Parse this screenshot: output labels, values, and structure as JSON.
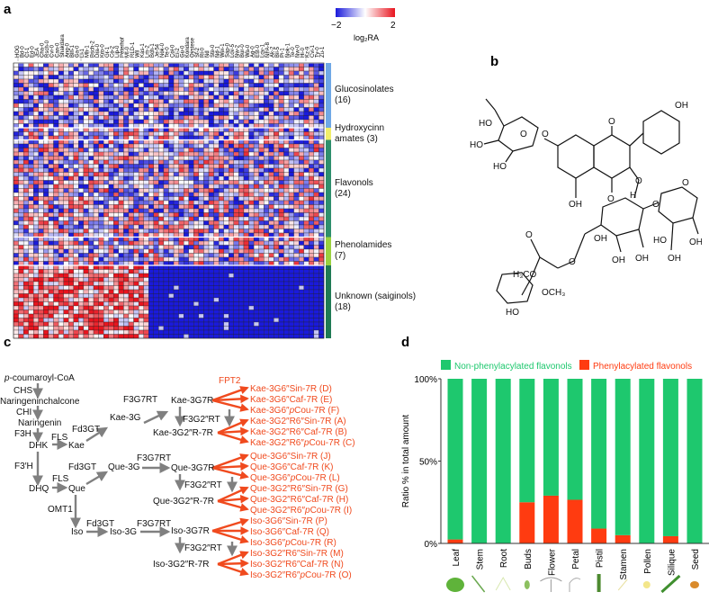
{
  "panels": {
    "a": "a",
    "b": "b",
    "c": "c",
    "d": "d"
  },
  "chart_data": [
    {
      "type": "heatmap",
      "panel": "a",
      "colorbar": {
        "min": -2,
        "max": 2,
        "min_label": "−2",
        "max_label": "2",
        "label": "log₂RA",
        "colors": [
          "#1a1adb",
          "#ffffff",
          "#e8141e"
        ]
      },
      "columns": [
        "HOG",
        "Bd-0",
        "Ct-1",
        "Ed-0",
        "JEA",
        "Cha-0",
        "Rsch-0",
        "Cvi-0",
        "Can-0",
        "Shakdara",
        "Ang-0",
        "Blh-1",
        "Ga-0",
        "Ll-1",
        "Mh-1",
        "Bsch-2",
        "Dra-0",
        "Kro-0",
        "Gr-1",
        "Co-2",
        "Lip-0",
        "Peterhof",
        "Mt-0",
        "RLD-1",
        "Wil",
        "Kas-1",
        "Lm-2",
        "Bch-1",
        "Je-54",
        "Nok-0",
        "Te-0",
        "Col-0",
        "Ei-2",
        "Gu-0",
        "Kondara",
        "Oystese",
        "Sf-2",
        "Ri-0",
        "Nd",
        "Ste-0",
        "Nd-1",
        "Wei-1",
        "Sap-0",
        "Lov-5",
        "Nw-2",
        "Bur-0",
        "Wa-0",
        "Ag-0",
        "Est-0",
        "Lov-1",
        "NFA-8",
        "Ak-2",
        "Bil-5",
        "Pi-1",
        "Nok-1",
        "Te-0",
        "Nw-0",
        "Hi-0",
        "Kz-9",
        "Cvi-1",
        "Ty-0",
        "Zu-1"
      ],
      "groups": [
        {
          "name": "Glucosinolates",
          "count_label": "(16)",
          "rows": 16,
          "color": "#6fa8e6"
        },
        {
          "name": "Hydroxycinn amates",
          "label_lines": [
            "Hydroxycinn",
            "amates (3)"
          ],
          "rows": 3,
          "color": "#f1ee6a"
        },
        {
          "name": "Flavonols",
          "count_label": "(24)",
          "rows": 24,
          "color": "#2e8f6c"
        },
        {
          "name": "Phenolamides",
          "count_label": "(7)",
          "rows": 7,
          "color": "#9bd13f"
        },
        {
          "name": "Unknown (saiginols)",
          "count_label": "(18)",
          "rows": 18,
          "color": "#1f7a54"
        }
      ]
    },
    {
      "type": "bar",
      "stacked": true,
      "panel": "d",
      "categories": [
        "Leaf",
        "Stem",
        "Root",
        "Buds",
        "Flower",
        "Petal",
        "Pistil",
        "Stamen",
        "Pollen",
        "Silique",
        "Seed"
      ],
      "series": [
        {
          "name": "Non-phenylacylated flavonols",
          "color": "#1ec86e",
          "values": [
            97.6,
            100,
            100,
            75,
            71,
            73.5,
            91,
            95,
            100,
            95.6,
            100
          ]
        },
        {
          "name": "Phenylacylated flavonols",
          "color": "#ff3b10",
          "values": [
            2.4,
            0,
            0,
            25,
            29,
            26.5,
            9,
            5,
            0,
            4.4,
            0
          ]
        }
      ],
      "ylabel": "Ratio % in total amount",
      "yticks": [
        "0%",
        "50%",
        "100%"
      ],
      "ylim": [
        0,
        100
      ],
      "legend": "top",
      "grid": false
    }
  ],
  "structure": {
    "labels": [
      "OH",
      "HO",
      "HO",
      "HO",
      "O",
      "O",
      "O",
      "O",
      "OH",
      "O",
      "OH",
      "OH",
      "HO",
      "O",
      "H",
      "O",
      "O",
      "O",
      "OH",
      "OH",
      "OH",
      "H₃CO",
      "HO",
      "OCH₃"
    ]
  },
  "pathway": {
    "black": [
      {
        "id": "pcoum",
        "t": "p-coumaroyl-CoA"
      },
      {
        "id": "chs",
        "t": "CHS"
      },
      {
        "id": "nch",
        "t": "Naringeninchalcone"
      },
      {
        "id": "chi",
        "t": "CHI"
      },
      {
        "id": "nar",
        "t": "Naringenin"
      },
      {
        "id": "f3h",
        "t": "F3H"
      },
      {
        "id": "dhk",
        "t": "DHK"
      },
      {
        "id": "fls1",
        "t": "FLS"
      },
      {
        "id": "kae",
        "t": "Kae"
      },
      {
        "id": "fd1",
        "t": "Fd3GT"
      },
      {
        "id": "kae3g",
        "t": "Kae-3G"
      },
      {
        "id": "f7a",
        "t": "F3G7RT"
      },
      {
        "id": "kae7r",
        "t": "Kae-3G7R"
      },
      {
        "id": "f2a",
        "t": "F3G2″RT"
      },
      {
        "id": "kae27",
        "t": "Kae-3G2″R-7R"
      },
      {
        "id": "f3ph",
        "t": "F3′H"
      },
      {
        "id": "dhq",
        "t": "DHQ"
      },
      {
        "id": "fls2",
        "t": "FLS"
      },
      {
        "id": "que",
        "t": "Que"
      },
      {
        "id": "fd2",
        "t": "Fd3GT"
      },
      {
        "id": "que3g",
        "t": "Que-3G"
      },
      {
        "id": "f7b",
        "t": "F3G7RT"
      },
      {
        "id": "que7r",
        "t": "Que-3G7R"
      },
      {
        "id": "f2b",
        "t": "F3G2″RT"
      },
      {
        "id": "que27",
        "t": "Que-3G2″R-7R"
      },
      {
        "id": "omt",
        "t": "OMT1"
      },
      {
        "id": "iso",
        "t": "Iso"
      },
      {
        "id": "fd3",
        "t": "Fd3GT"
      },
      {
        "id": "iso3g",
        "t": "Iso-3G"
      },
      {
        "id": "f7c",
        "t": "F3G7RT"
      },
      {
        "id": "iso7r",
        "t": "Iso-3G7R"
      },
      {
        "id": "f2c",
        "t": "F3G2″RT"
      },
      {
        "id": "iso27",
        "t": "Iso-3G2″R-7R"
      }
    ],
    "enzyme_red": "FPT2",
    "products": [
      "Kae-3G6″Sin-7R (D)",
      "Kae-3G6″Caf-7R (E)",
      "Kae-3G6″pCou-7R (F)",
      "Kae-3G2″R6″Sin-7R (A)",
      "Kae-3G2″R6″Caf-7R (B)",
      "Kae-3G2″R6″pCou-7R (C)",
      "Que-3G6″Sin-7R (J)",
      "Que-3G6″Caf-7R (K)",
      "Que-3G6″pCou-7R (L)",
      "Que-3G2″R6″Sin-7R (G)",
      "Que-3G2″R6″Caf-7R (H)",
      "Que-3G2″R6″pCou-7R (I)",
      "Iso-3G6″Sin-7R (P)",
      "Iso-3G6″Caf-7R (Q)",
      "Iso-3G6″pCou-7R (R)",
      "Iso-3G2″R6″Sin-7R (M)",
      "Iso-3G2″R6″Caf-7R (N)",
      "Iso-3G2″R6″pCou-7R (O)"
    ],
    "colors": {
      "arrow": "#808080",
      "red": "#f04a1e"
    }
  }
}
